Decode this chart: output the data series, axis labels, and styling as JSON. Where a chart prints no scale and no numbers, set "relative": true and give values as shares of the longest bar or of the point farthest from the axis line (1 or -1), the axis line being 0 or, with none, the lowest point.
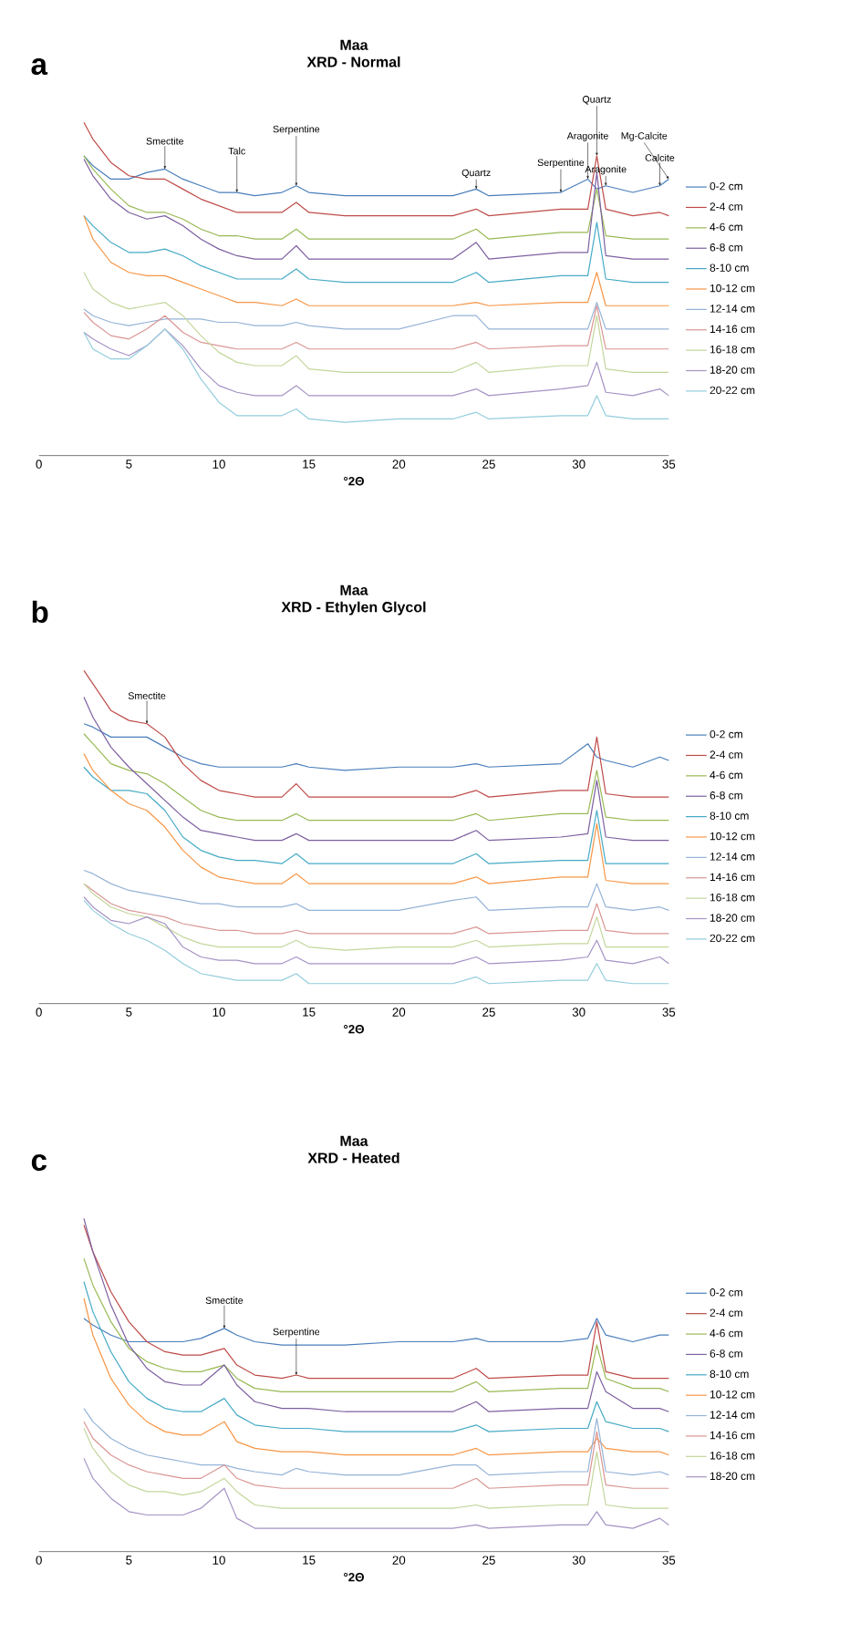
{
  "chart_data": [
    {
      "type": "line",
      "title": "Maa",
      "subtitle": "XRD - Normal",
      "xlabel": "°2Θ",
      "relative": true,
      "legend": "right",
      "xlim": [
        0,
        35
      ],
      "xticks": [
        0,
        5,
        10,
        15,
        20,
        25,
        30,
        35
      ],
      "x": [
        2.5,
        3,
        4,
        5,
        6,
        7,
        8,
        9,
        10,
        11,
        12,
        13.5,
        14.3,
        15,
        17,
        20,
        23,
        24.3,
        25,
        29,
        30.5,
        31,
        31.5,
        33,
        34.5,
        35
      ],
      "annotations": [
        "a",
        {
          "text": "Smectite",
          "x": 7,
          "y": 0.86
        },
        {
          "text": "Talc",
          "x": 11,
          "y": 0.79
        },
        {
          "text": "Serpentine",
          "x": 14.3,
          "y": 0.81
        },
        {
          "text": "Quartz",
          "x": 24.3,
          "y": 0.8
        },
        {
          "text": "Serpentine",
          "x": 29,
          "y": 0.79
        },
        {
          "text": "Aragonite",
          "x": 30.5,
          "y": 0.83
        },
        {
          "text": "Quartz",
          "x": 31,
          "y": 0.9
        },
        {
          "text": "Aragonite",
          "x": 31.5,
          "y": 0.81
        },
        {
          "text": "Calcite",
          "x": 34.5,
          "y": 0.81
        },
        {
          "text": "Mg-Calcite",
          "x": 35,
          "y": 0.83
        }
      ],
      "series": [
        {
          "name": "0-2 cm",
          "color": "#4a7ebb",
          "values": [
            0.9,
            0.87,
            0.83,
            0.83,
            0.85,
            0.86,
            0.83,
            0.81,
            0.79,
            0.79,
            0.78,
            0.79,
            0.81,
            0.79,
            0.78,
            0.78,
            0.78,
            0.8,
            0.78,
            0.79,
            0.83,
            0.8,
            0.81,
            0.79,
            0.81,
            0.83
          ]
        },
        {
          "name": "2-4 cm",
          "color": "#be4b48",
          "values": [
            1.0,
            0.95,
            0.88,
            0.84,
            0.83,
            0.83,
            0.8,
            0.77,
            0.75,
            0.73,
            0.73,
            0.73,
            0.76,
            0.73,
            0.72,
            0.72,
            0.72,
            0.74,
            0.72,
            0.74,
            0.74,
            0.9,
            0.74,
            0.72,
            0.73,
            0.72
          ]
        },
        {
          "name": "4-6 cm",
          "color": "#98b954",
          "values": [
            0.9,
            0.86,
            0.8,
            0.75,
            0.73,
            0.73,
            0.71,
            0.68,
            0.66,
            0.66,
            0.65,
            0.65,
            0.68,
            0.65,
            0.65,
            0.65,
            0.65,
            0.68,
            0.65,
            0.67,
            0.67,
            0.8,
            0.66,
            0.65,
            0.65,
            0.65
          ]
        },
        {
          "name": "6-8 cm",
          "color": "#7d60a0",
          "values": [
            0.89,
            0.84,
            0.77,
            0.73,
            0.71,
            0.72,
            0.69,
            0.65,
            0.62,
            0.6,
            0.59,
            0.59,
            0.63,
            0.59,
            0.59,
            0.59,
            0.59,
            0.64,
            0.59,
            0.61,
            0.61,
            0.85,
            0.6,
            0.59,
            0.59,
            0.59
          ]
        },
        {
          "name": "8-10 cm",
          "color": "#46aac5",
          "values": [
            0.72,
            0.69,
            0.64,
            0.61,
            0.61,
            0.62,
            0.6,
            0.57,
            0.55,
            0.53,
            0.53,
            0.53,
            0.56,
            0.53,
            0.52,
            0.52,
            0.52,
            0.55,
            0.52,
            0.54,
            0.54,
            0.7,
            0.53,
            0.52,
            0.52,
            0.52
          ]
        },
        {
          "name": "10-12 cm",
          "color": "#f79646",
          "values": [
            0.72,
            0.65,
            0.58,
            0.55,
            0.54,
            0.54,
            0.52,
            0.5,
            0.48,
            0.46,
            0.46,
            0.45,
            0.47,
            0.45,
            0.45,
            0.45,
            0.45,
            0.46,
            0.45,
            0.46,
            0.46,
            0.55,
            0.45,
            0.45,
            0.45,
            0.45
          ]
        },
        {
          "name": "12-14 cm",
          "color": "#95b3d7",
          "values": [
            0.44,
            0.42,
            0.4,
            0.39,
            0.4,
            0.41,
            0.41,
            0.41,
            0.4,
            0.4,
            0.39,
            0.39,
            0.4,
            0.39,
            0.38,
            0.38,
            0.42,
            0.42,
            0.38,
            0.38,
            0.38,
            0.46,
            0.38,
            0.38,
            0.38,
            0.38
          ]
        },
        {
          "name": "14-16 cm",
          "color": "#d99694",
          "values": [
            0.43,
            0.4,
            0.36,
            0.35,
            0.38,
            0.42,
            0.37,
            0.34,
            0.33,
            0.32,
            0.32,
            0.32,
            0.34,
            0.32,
            0.32,
            0.32,
            0.32,
            0.34,
            0.32,
            0.33,
            0.33,
            0.45,
            0.32,
            0.32,
            0.32,
            0.32
          ]
        },
        {
          "name": "16-18 cm",
          "color": "#c3d69b",
          "values": [
            0.55,
            0.5,
            0.46,
            0.44,
            0.45,
            0.46,
            0.42,
            0.36,
            0.31,
            0.28,
            0.27,
            0.27,
            0.3,
            0.26,
            0.25,
            0.25,
            0.25,
            0.28,
            0.25,
            0.27,
            0.27,
            0.42,
            0.26,
            0.25,
            0.25,
            0.25
          ]
        },
        {
          "name": "18-20 cm",
          "color": "#a593c4",
          "values": [
            0.37,
            0.35,
            0.32,
            0.3,
            0.33,
            0.38,
            0.33,
            0.26,
            0.21,
            0.19,
            0.18,
            0.18,
            0.21,
            0.18,
            0.18,
            0.18,
            0.18,
            0.2,
            0.18,
            0.2,
            0.21,
            0.28,
            0.19,
            0.18,
            0.2,
            0.18
          ]
        },
        {
          "name": "20-22 cm",
          "color": "#93cddd",
          "values": [
            0.37,
            0.32,
            0.29,
            0.29,
            0.33,
            0.38,
            0.32,
            0.23,
            0.16,
            0.12,
            0.12,
            0.12,
            0.14,
            0.11,
            0.1,
            0.11,
            0.11,
            0.13,
            0.11,
            0.12,
            0.12,
            0.18,
            0.12,
            0.11,
            0.11,
            0.11
          ]
        }
      ]
    },
    {
      "type": "line",
      "title": "Maa",
      "subtitle": "XRD - Ethylen Glycol",
      "xlabel": "°2Θ",
      "relative": true,
      "legend": "right",
      "xlim": [
        0,
        35
      ],
      "xticks": [
        0,
        5,
        10,
        15,
        20,
        25,
        30,
        35
      ],
      "x": [
        2.5,
        3,
        4,
        5,
        6,
        7,
        8,
        9,
        10,
        11,
        12,
        13.5,
        14.3,
        15,
        17,
        20,
        23,
        24.3,
        25,
        29,
        30.5,
        31,
        31.5,
        33,
        34.5,
        35
      ],
      "annotations": [
        "b",
        {
          "text": "Smectite",
          "x": 6,
          "y": 0.84
        }
      ],
      "series": [
        {
          "name": "0-2 cm",
          "color": "#4a7ebb",
          "values": [
            0.84,
            0.83,
            0.8,
            0.8,
            0.8,
            0.77,
            0.74,
            0.72,
            0.71,
            0.71,
            0.71,
            0.71,
            0.72,
            0.71,
            0.7,
            0.71,
            0.71,
            0.72,
            0.71,
            0.72,
            0.78,
            0.74,
            0.73,
            0.71,
            0.74,
            0.73
          ]
        },
        {
          "name": "2-4 cm",
          "color": "#be4b48",
          "values": [
            1.0,
            0.96,
            0.88,
            0.85,
            0.84,
            0.8,
            0.72,
            0.67,
            0.64,
            0.63,
            0.62,
            0.62,
            0.66,
            0.62,
            0.62,
            0.62,
            0.62,
            0.64,
            0.62,
            0.64,
            0.64,
            0.8,
            0.63,
            0.62,
            0.62,
            0.62
          ]
        },
        {
          "name": "4-6 cm",
          "color": "#98b954",
          "values": [
            0.81,
            0.78,
            0.72,
            0.7,
            0.69,
            0.66,
            0.62,
            0.58,
            0.56,
            0.55,
            0.55,
            0.55,
            0.57,
            0.55,
            0.55,
            0.55,
            0.55,
            0.57,
            0.55,
            0.57,
            0.57,
            0.7,
            0.56,
            0.55,
            0.55,
            0.55
          ]
        },
        {
          "name": "6-8 cm",
          "color": "#7d60a0",
          "values": [
            0.92,
            0.86,
            0.77,
            0.71,
            0.66,
            0.61,
            0.56,
            0.52,
            0.51,
            0.5,
            0.49,
            0.49,
            0.51,
            0.49,
            0.49,
            0.49,
            0.49,
            0.52,
            0.49,
            0.5,
            0.51,
            0.67,
            0.5,
            0.49,
            0.49,
            0.49
          ]
        },
        {
          "name": "8-10 cm",
          "color": "#46aac5",
          "values": [
            0.71,
            0.68,
            0.64,
            0.64,
            0.63,
            0.58,
            0.5,
            0.46,
            0.44,
            0.43,
            0.43,
            0.42,
            0.45,
            0.42,
            0.42,
            0.42,
            0.42,
            0.45,
            0.42,
            0.43,
            0.43,
            0.58,
            0.42,
            0.42,
            0.42,
            0.42
          ]
        },
        {
          "name": "10-12 cm",
          "color": "#f79646",
          "values": [
            0.75,
            0.7,
            0.64,
            0.6,
            0.58,
            0.53,
            0.46,
            0.41,
            0.38,
            0.37,
            0.36,
            0.36,
            0.39,
            0.36,
            0.36,
            0.36,
            0.36,
            0.38,
            0.36,
            0.38,
            0.38,
            0.54,
            0.37,
            0.36,
            0.36,
            0.36
          ]
        },
        {
          "name": "12-14 cm",
          "color": "#95b3d7",
          "values": [
            0.4,
            0.39,
            0.36,
            0.34,
            0.33,
            0.32,
            0.31,
            0.3,
            0.3,
            0.29,
            0.29,
            0.29,
            0.3,
            0.28,
            0.28,
            0.28,
            0.31,
            0.32,
            0.28,
            0.29,
            0.29,
            0.36,
            0.29,
            0.28,
            0.29,
            0.28
          ]
        },
        {
          "name": "14-16 cm",
          "color": "#d99694",
          "values": [
            0.36,
            0.34,
            0.3,
            0.28,
            0.27,
            0.26,
            0.24,
            0.23,
            0.22,
            0.22,
            0.21,
            0.21,
            0.22,
            0.21,
            0.21,
            0.21,
            0.21,
            0.23,
            0.21,
            0.22,
            0.22,
            0.3,
            0.22,
            0.21,
            0.21,
            0.21
          ]
        },
        {
          "name": "16-18 cm",
          "color": "#c3d69b",
          "values": [
            0.36,
            0.33,
            0.29,
            0.27,
            0.26,
            0.23,
            0.2,
            0.18,
            0.17,
            0.17,
            0.17,
            0.17,
            0.19,
            0.17,
            0.16,
            0.17,
            0.17,
            0.19,
            0.17,
            0.18,
            0.18,
            0.26,
            0.17,
            0.17,
            0.17,
            0.17
          ]
        },
        {
          "name": "18-20 cm",
          "color": "#a593c4",
          "values": [
            0.32,
            0.29,
            0.25,
            0.24,
            0.26,
            0.24,
            0.17,
            0.14,
            0.13,
            0.13,
            0.12,
            0.12,
            0.14,
            0.12,
            0.12,
            0.12,
            0.12,
            0.14,
            0.12,
            0.13,
            0.14,
            0.19,
            0.13,
            0.12,
            0.14,
            0.12
          ]
        },
        {
          "name": "20-22 cm",
          "color": "#93cddd",
          "values": [
            0.31,
            0.28,
            0.24,
            0.21,
            0.19,
            0.16,
            0.12,
            0.09,
            0.08,
            0.07,
            0.07,
            0.07,
            0.09,
            0.06,
            0.06,
            0.06,
            0.06,
            0.08,
            0.06,
            0.07,
            0.07,
            0.12,
            0.07,
            0.06,
            0.06,
            0.06
          ]
        }
      ]
    },
    {
      "type": "line",
      "title": "Maa",
      "subtitle": "XRD - Heated",
      "xlabel": "°2Θ",
      "relative": true,
      "legend": "right",
      "xlim": [
        0,
        35
      ],
      "xticks": [
        0,
        5,
        10,
        15,
        20,
        25,
        30,
        35
      ],
      "x": [
        2.5,
        3,
        4,
        5,
        6,
        7,
        8,
        9,
        10.3,
        11,
        12,
        13.5,
        14.3,
        15,
        17,
        20,
        23,
        24.3,
        25,
        29,
        30.5,
        31,
        31.5,
        33,
        34.5,
        35
      ],
      "annotations": [
        "c",
        {
          "text": "Smectite",
          "x": 10.3,
          "y": 0.67
        },
        {
          "text": "Serpentine",
          "x": 14.3,
          "y": 0.53
        }
      ],
      "series": [
        {
          "name": "0-2 cm",
          "color": "#4a7ebb",
          "values": [
            0.7,
            0.68,
            0.65,
            0.63,
            0.63,
            0.63,
            0.63,
            0.64,
            0.67,
            0.65,
            0.63,
            0.62,
            0.62,
            0.62,
            0.62,
            0.63,
            0.63,
            0.64,
            0.63,
            0.63,
            0.64,
            0.7,
            0.65,
            0.63,
            0.65,
            0.65
          ]
        },
        {
          "name": "2-4 cm",
          "color": "#be4b48",
          "values": [
            0.98,
            0.9,
            0.78,
            0.69,
            0.63,
            0.6,
            0.59,
            0.59,
            0.61,
            0.56,
            0.53,
            0.52,
            0.53,
            0.52,
            0.52,
            0.52,
            0.52,
            0.55,
            0.52,
            0.53,
            0.53,
            0.69,
            0.54,
            0.52,
            0.52,
            0.52
          ]
        },
        {
          "name": "4-6 cm",
          "color": "#98b954",
          "values": [
            0.88,
            0.8,
            0.69,
            0.61,
            0.57,
            0.55,
            0.54,
            0.54,
            0.56,
            0.52,
            0.49,
            0.48,
            0.48,
            0.48,
            0.48,
            0.48,
            0.48,
            0.51,
            0.48,
            0.49,
            0.49,
            0.62,
            0.52,
            0.49,
            0.49,
            0.48
          ]
        },
        {
          "name": "6-8 cm",
          "color": "#7d60a0",
          "values": [
            1.0,
            0.9,
            0.74,
            0.62,
            0.55,
            0.51,
            0.5,
            0.5,
            0.56,
            0.5,
            0.45,
            0.43,
            0.43,
            0.43,
            0.42,
            0.42,
            0.42,
            0.45,
            0.42,
            0.43,
            0.43,
            0.54,
            0.48,
            0.43,
            0.43,
            0.42
          ]
        },
        {
          "name": "8-10 cm",
          "color": "#46aac5",
          "values": [
            0.81,
            0.72,
            0.6,
            0.51,
            0.46,
            0.43,
            0.42,
            0.42,
            0.46,
            0.41,
            0.38,
            0.37,
            0.37,
            0.37,
            0.36,
            0.36,
            0.36,
            0.38,
            0.36,
            0.37,
            0.37,
            0.45,
            0.39,
            0.37,
            0.37,
            0.36
          ]
        },
        {
          "name": "10-12 cm",
          "color": "#f79646",
          "values": [
            0.76,
            0.65,
            0.52,
            0.44,
            0.39,
            0.36,
            0.35,
            0.35,
            0.39,
            0.33,
            0.31,
            0.3,
            0.3,
            0.3,
            0.29,
            0.29,
            0.29,
            0.31,
            0.29,
            0.3,
            0.3,
            0.34,
            0.31,
            0.3,
            0.3,
            0.29
          ]
        },
        {
          "name": "12-14 cm",
          "color": "#95b3d7",
          "values": [
            0.43,
            0.39,
            0.34,
            0.31,
            0.29,
            0.28,
            0.27,
            0.26,
            0.26,
            0.25,
            0.24,
            0.23,
            0.25,
            0.24,
            0.23,
            0.23,
            0.26,
            0.26,
            0.23,
            0.24,
            0.24,
            0.4,
            0.24,
            0.23,
            0.24,
            0.23
          ]
        },
        {
          "name": "14-16 cm",
          "color": "#d99694",
          "values": [
            0.39,
            0.34,
            0.29,
            0.26,
            0.24,
            0.23,
            0.22,
            0.22,
            0.26,
            0.22,
            0.2,
            0.19,
            0.19,
            0.19,
            0.19,
            0.19,
            0.19,
            0.22,
            0.19,
            0.2,
            0.2,
            0.36,
            0.2,
            0.19,
            0.19,
            0.19
          ]
        },
        {
          "name": "16-18 cm",
          "color": "#c3d69b",
          "values": [
            0.37,
            0.31,
            0.24,
            0.2,
            0.18,
            0.18,
            0.17,
            0.18,
            0.22,
            0.18,
            0.14,
            0.13,
            0.13,
            0.13,
            0.13,
            0.13,
            0.13,
            0.14,
            0.13,
            0.14,
            0.14,
            0.3,
            0.14,
            0.13,
            0.13,
            0.13
          ]
        },
        {
          "name": "18-20 cm",
          "color": "#a593c4",
          "values": [
            0.28,
            0.22,
            0.16,
            0.12,
            0.11,
            0.11,
            0.11,
            0.13,
            0.19,
            0.1,
            0.07,
            0.07,
            0.07,
            0.07,
            0.07,
            0.07,
            0.07,
            0.08,
            0.07,
            0.08,
            0.08,
            0.12,
            0.08,
            0.07,
            0.1,
            0.08
          ]
        }
      ]
    }
  ]
}
